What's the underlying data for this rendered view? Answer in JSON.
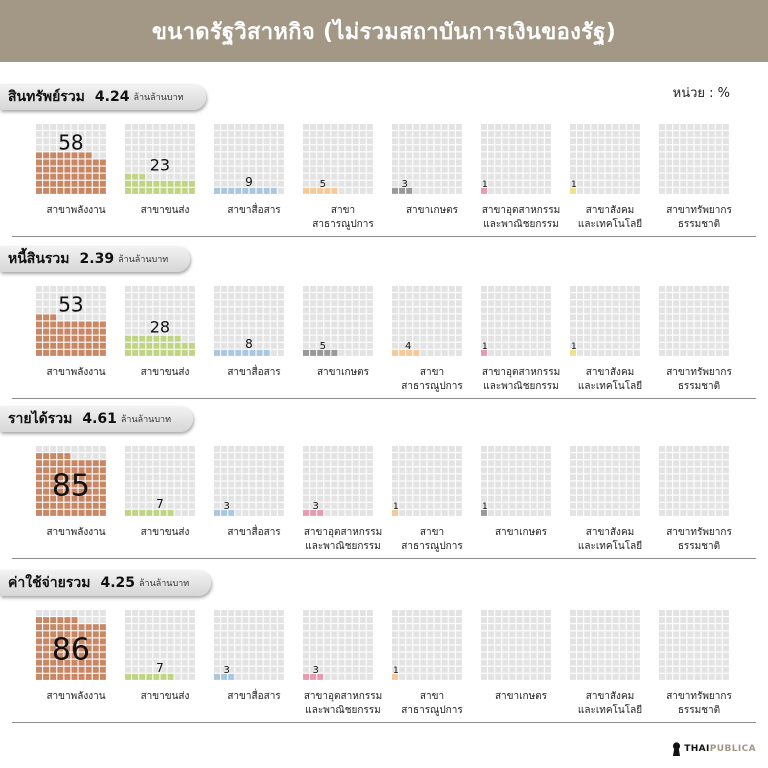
{
  "title": "ขนาดรัฐวิสาหกิจ (ไม่รวมสถาบันการเงินของรัฐ)",
  "unit_label": "หน่วย : %",
  "colors": {
    "empty": "#e3e3e3",
    "energy": "#c88866",
    "transport": "#bfd485",
    "communication": "#a9c7e0",
    "public_utility": "#f6c89a",
    "agriculture": "#999999",
    "industry_commerce": "#e89bb0",
    "social_tech": "#f0e08a",
    "natural_resources": "#e3e3e3"
  },
  "chart_data": [
    {
      "type": "waffle",
      "label": "สินทรัพย์รวม",
      "value_text": "4.24",
      "unit_text": "ล้านล้านบาท",
      "categories": [
        "สาขาพลังงาน",
        "สาขาขนส่ง",
        "สาขาสื่อสาร",
        "สาขาสาธารณูปการ",
        "สาขาเกษตร",
        "สาขาอุตสาหกรรมและพาณิชยกรรม",
        "สาขาสังคมและเทคโนโลยี",
        "สาขาทรัพยากรธรรมชาติ"
      ],
      "values": [
        58,
        23,
        9,
        5,
        3,
        1,
        1,
        null
      ],
      "value_labels": [
        "58",
        "23",
        "9",
        "5",
        "3",
        "1",
        "1",
        ""
      ],
      "label_lines": [
        [
          "สาขาพลังงาน"
        ],
        [
          "สาขาขนส่ง"
        ],
        [
          "สาขาสื่อสาร"
        ],
        [
          "สาขาสาธารณูปการ"
        ],
        [
          "สาขาเกษตร"
        ],
        [
          "สาขาอุตสาหกรรม",
          "และพาณิชยกรรม"
        ],
        [
          "สาขาสังคม",
          "และเทคโนโลยี"
        ],
        [
          "สาขาทรัพยากร",
          "ธรรมชาติ"
        ]
      ],
      "color_keys": [
        "energy",
        "transport",
        "communication",
        "public_utility",
        "agriculture",
        "industry_commerce",
        "social_tech",
        "natural_resources"
      ]
    },
    {
      "type": "waffle",
      "label": "หนี้สินรวม",
      "value_text": "2.39",
      "unit_text": "ล้านล้านบาท",
      "categories": [
        "สาขาพลังงาน",
        "สาขาขนส่ง",
        "สาขาสื่อสาร",
        "สาขาเกษตร",
        "สาขาสาธารณูปการ",
        "สาขาอุตสาหกรรมและพาณิชยกรรม",
        "สาขาสังคมและเทคโนโลยี",
        "สาขาทรัพยากรธรรมชาติ"
      ],
      "values": [
        53,
        28,
        8,
        5,
        4,
        1,
        1,
        null
      ],
      "value_labels": [
        "53",
        "28",
        "8",
        "5",
        "4",
        "1",
        "1",
        ""
      ],
      "label_lines": [
        [
          "สาขาพลังงาน"
        ],
        [
          "สาขาขนส่ง"
        ],
        [
          "สาขาสื่อสาร"
        ],
        [
          "สาขาเกษตร"
        ],
        [
          "สาขาสาธารณูปการ"
        ],
        [
          "สาขาอุตสาหกรรม",
          "และพาณิชยกรรม"
        ],
        [
          "สาขาสังคม",
          "และเทคโนโลยี"
        ],
        [
          "สาขาทรัพยากร",
          "ธรรมชาติ"
        ]
      ],
      "color_keys": [
        "energy",
        "transport",
        "communication",
        "agriculture",
        "public_utility",
        "industry_commerce",
        "social_tech",
        "natural_resources"
      ]
    },
    {
      "type": "waffle",
      "label": "รายได้รวม",
      "value_text": "4.61",
      "unit_text": "ล้านล้านบาท",
      "categories": [
        "สาขาพลังงาน",
        "สาขาขนส่ง",
        "สาขาสื่อสาร",
        "สาขาอุตสาหกรรมและพาณิชยกรรม",
        "สาขาสาธารณูปการ",
        "สาขาเกษตร",
        "สาขาสังคมและเทคโนโลยี",
        "สาขาทรัพยากรธรรมชาติ"
      ],
      "values": [
        85,
        7,
        3,
        3,
        1,
        1,
        null,
        null
      ],
      "value_labels": [
        "85",
        "7",
        "3",
        "3",
        "1",
        "1",
        "",
        ""
      ],
      "label_lines": [
        [
          "สาขาพลังงาน"
        ],
        [
          "สาขาขนส่ง"
        ],
        [
          "สาขาสื่อสาร"
        ],
        [
          "สาขาอุตสาหกรรม",
          "และพาณิชยกรรม"
        ],
        [
          "สาขาสาธารณูปการ"
        ],
        [
          "สาขาเกษตร"
        ],
        [
          "สาขาสังคม",
          "และเทคโนโลยี"
        ],
        [
          "สาขาทรัพยากร",
          "ธรรมชาติ"
        ]
      ],
      "color_keys": [
        "energy",
        "transport",
        "communication",
        "industry_commerce",
        "public_utility",
        "agriculture",
        "social_tech",
        "natural_resources"
      ]
    },
    {
      "type": "waffle",
      "label": "ค่าใช้จ่ายรวม",
      "value_text": "4.25",
      "unit_text": "ล้านล้านบาท",
      "categories": [
        "สาขาพลังงาน",
        "สาขาขนส่ง",
        "สาขาสื่อสาร",
        "สาขาอุตสาหกรรมและพาณิชยกรรม",
        "สาขาสาธารณูปการ",
        "สาขาเกษตร",
        "สาขาสังคมและเทคโนโลยี",
        "สาขาทรัพยากรธรรมชาติ"
      ],
      "values": [
        86,
        7,
        3,
        3,
        1,
        null,
        null,
        null
      ],
      "value_labels": [
        "86",
        "7",
        "3",
        "3",
        "1",
        "",
        "",
        ""
      ],
      "label_lines": [
        [
          "สาขาพลังงาน"
        ],
        [
          "สาขาขนส่ง"
        ],
        [
          "สาขาสื่อสาร"
        ],
        [
          "สาขาอุตสาหกรรม",
          "และพาณิชยกรรม"
        ],
        [
          "สาขาสาธารณูปการ"
        ],
        [
          "สาขาเกษตร"
        ],
        [
          "สาขาสังคม",
          "และเทคโนโลยี"
        ],
        [
          "สาขาทรัพยากร",
          "ธรรมชาติ"
        ]
      ],
      "color_keys": [
        "energy",
        "transport",
        "communication",
        "industry_commerce",
        "public_utility",
        "agriculture",
        "social_tech",
        "natural_resources"
      ]
    }
  ],
  "logo": {
    "text_main": "THAI",
    "text_accent": "PUBLICA"
  }
}
